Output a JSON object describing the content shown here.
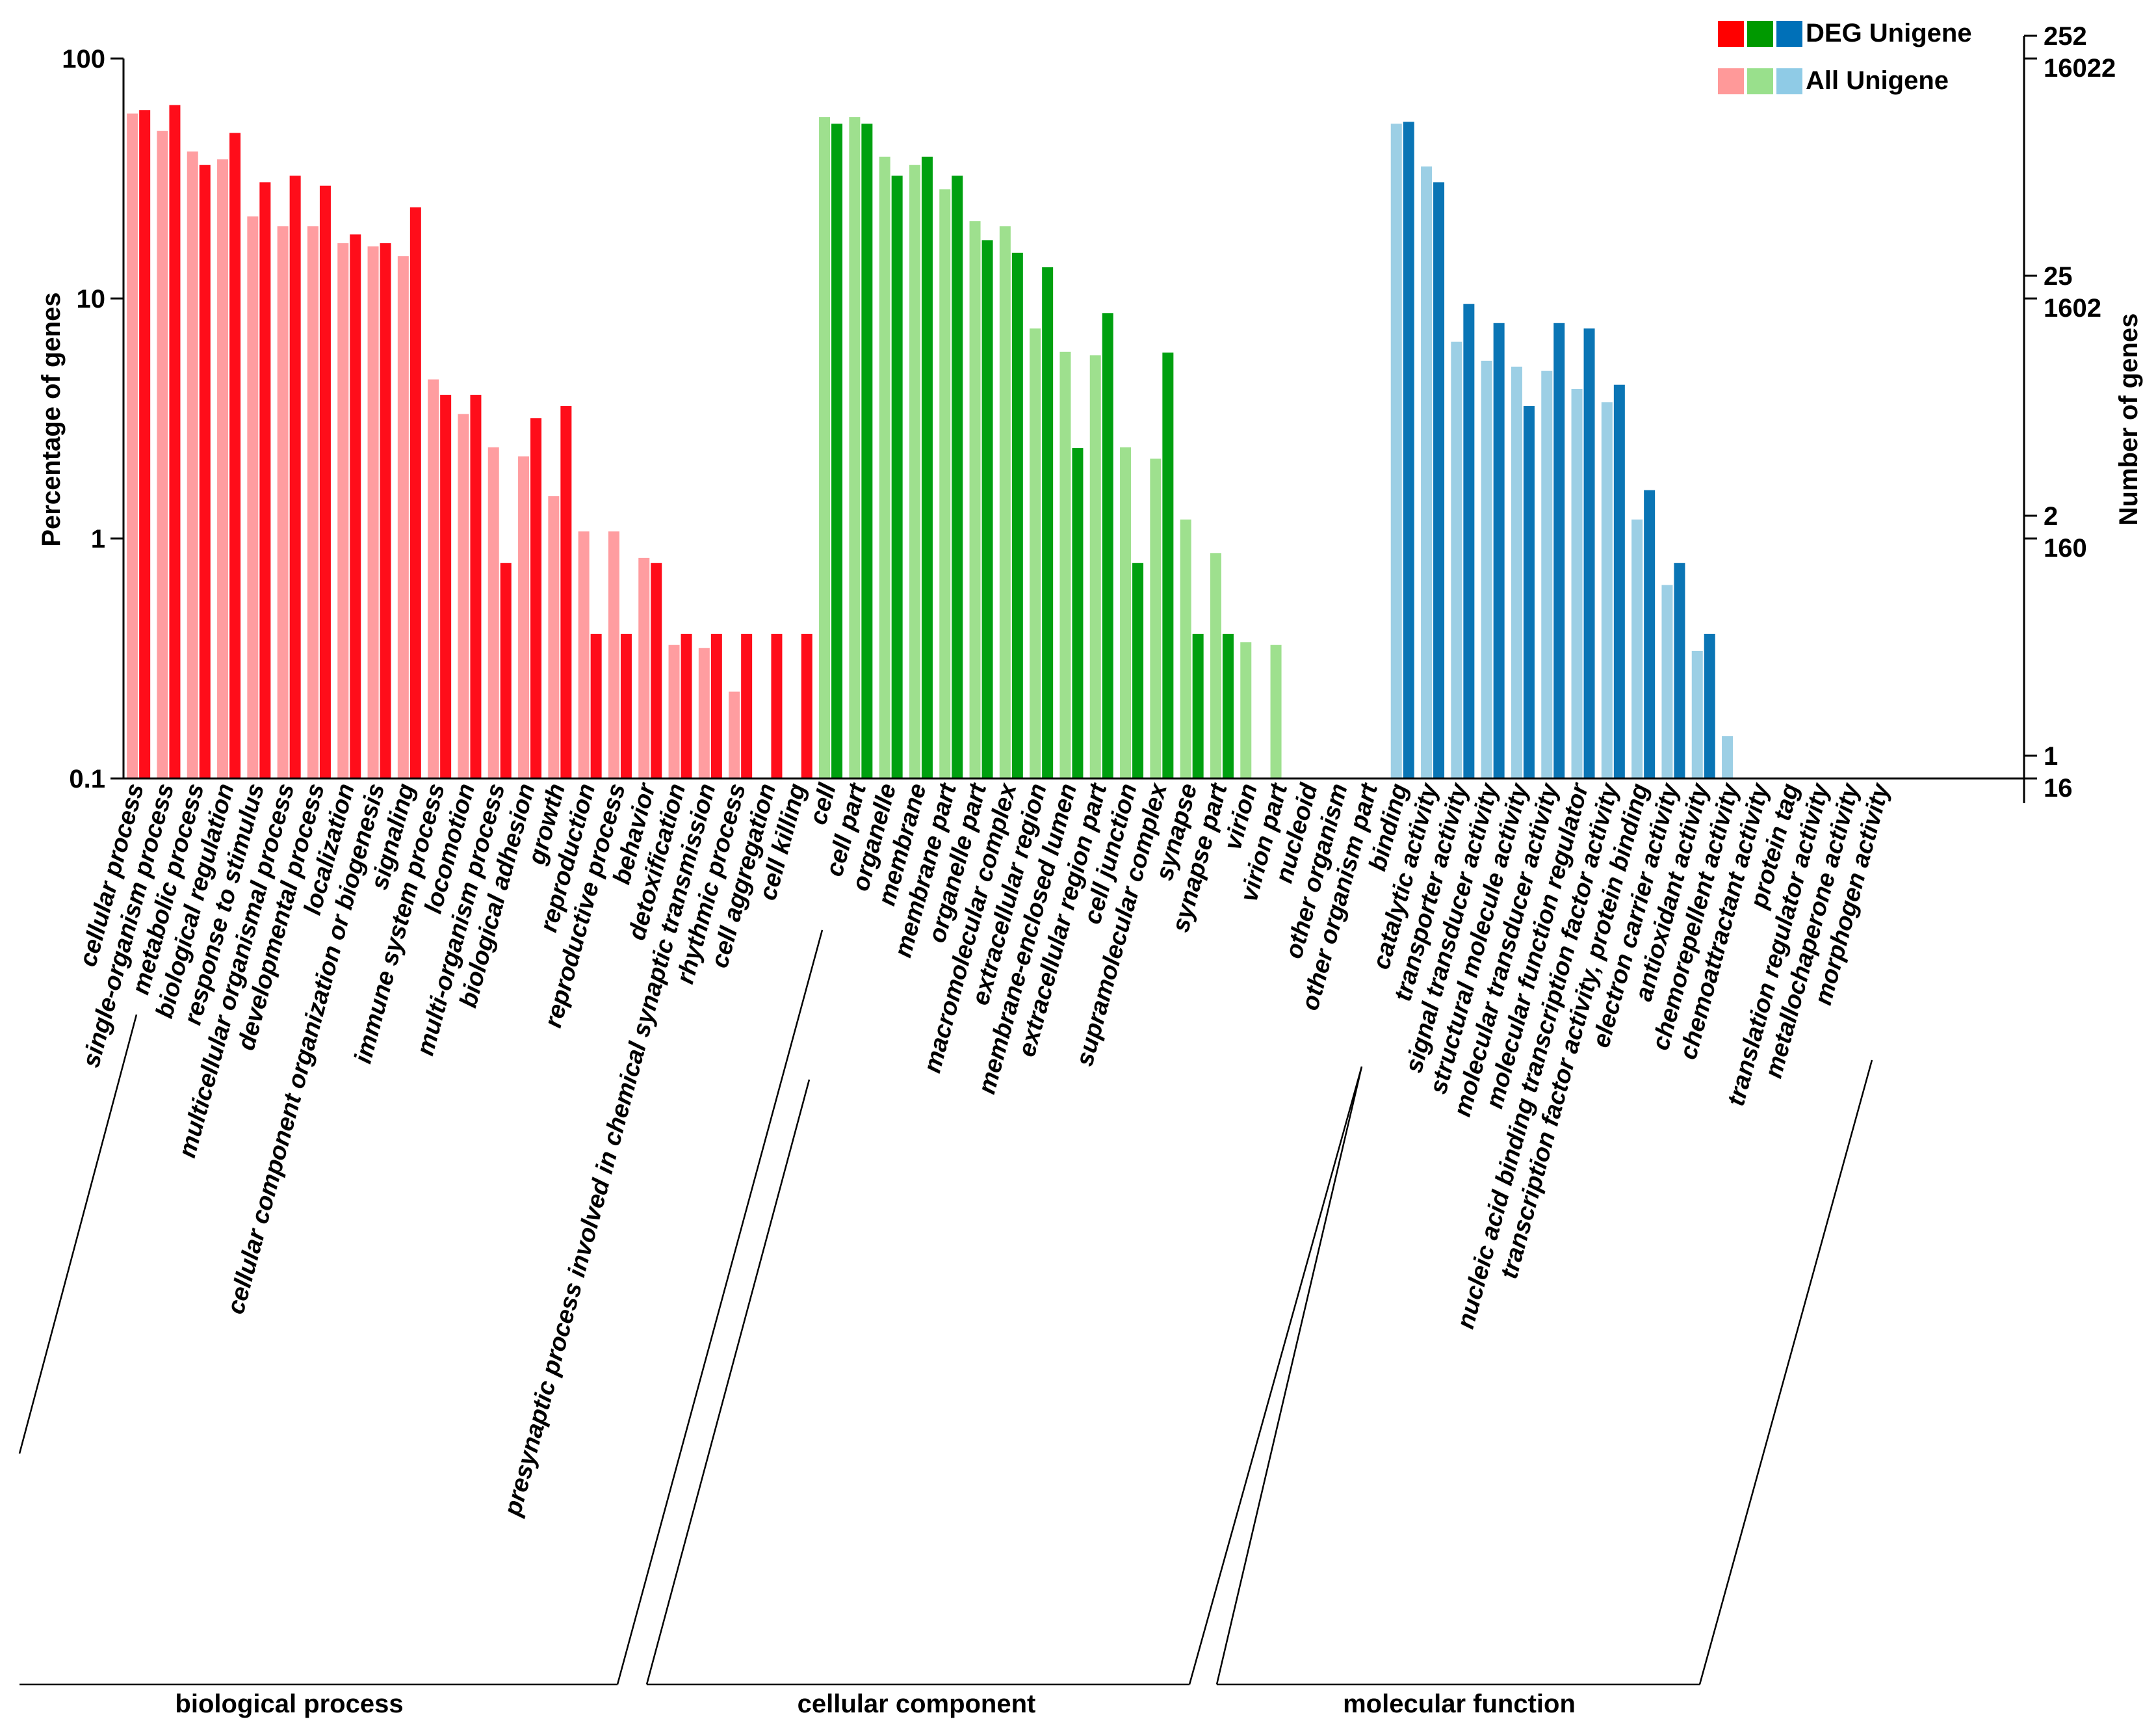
{
  "chart_data": {
    "type": "bar",
    "scale": "log",
    "ylabel": "Percentage of genes",
    "y2label": "Number of genes",
    "ylim": [
      0.1,
      100
    ],
    "y_ticks": [
      "100",
      "10",
      "1",
      "0.1"
    ],
    "y2_ticks": [
      {
        "deg": "252",
        "all": "16022"
      },
      {
        "deg": "25",
        "all": "1602"
      },
      {
        "deg": "2",
        "all": "160"
      },
      {
        "deg": "1",
        "all": "16"
      }
    ],
    "legend": [
      {
        "label": "DEG Unigene",
        "colors": [
          "#ff0000",
          "#009900",
          "#0070b8"
        ]
      },
      {
        "label": "All Unigene",
        "colors": [
          "#ff9999",
          "#99e08c",
          "#8fcbe6"
        ]
      }
    ],
    "series": [
      {
        "name": "All Unigene"
      },
      {
        "name": "DEG Unigene"
      }
    ],
    "groups": [
      {
        "name": "biological process",
        "dark": "#ff0d1a",
        "light": "#ff9da0",
        "categories": [
          "cellular process",
          "single-organism process",
          "metabolic process",
          "biological regulation",
          "response to stimulus",
          "multicellular organismal process",
          "developmental process",
          "localization",
          "cellular component organization or biogenesis",
          "signaling",
          "immune system process",
          "locomotion",
          "multi-organism process",
          "biological adhesion",
          "growth",
          "reproduction",
          "reproductive process",
          "behavior",
          "detoxification",
          "presynaptic process involved in chemical synaptic transmission",
          "rhythmic process",
          "cell aggregation",
          "cell killing"
        ],
        "all": [
          59,
          50,
          41,
          38,
          22,
          20,
          20,
          17,
          16.5,
          15,
          4.6,
          3.3,
          2.4,
          2.2,
          1.5,
          1.07,
          1.07,
          0.83,
          0.36,
          0.35,
          0.23,
          null,
          null
        ],
        "deg": [
          61,
          64,
          36,
          49,
          30.5,
          32.5,
          29.5,
          18.5,
          17,
          24,
          3.97,
          3.97,
          0.79,
          3.17,
          3.57,
          0.4,
          0.4,
          0.79,
          0.4,
          0.4,
          0.4,
          0.4,
          0.4
        ]
      },
      {
        "name": "cellular component",
        "dark": "#00a010",
        "light": "#9ee08e",
        "categories": [
          "cell",
          "cell part",
          "organelle",
          "membrane",
          "membrane part",
          "organelle part",
          "macromolecular complex",
          "extracellular region",
          "membrane-enclosed lumen",
          "extracellular region part",
          "cell junction",
          "supramolecular complex",
          "synapse",
          "synapse part",
          "virion",
          "virion part",
          "nucleoid",
          "other organism",
          "other organism part"
        ],
        "all": [
          57,
          57,
          39,
          36,
          28.5,
          21,
          20,
          7.5,
          6,
          5.8,
          2.4,
          2.15,
          1.2,
          0.87,
          0.37,
          0.36,
          null,
          null,
          null
        ],
        "deg": [
          53.5,
          53.5,
          32.5,
          39,
          32.5,
          17.5,
          15.5,
          13.5,
          2.38,
          8.7,
          0.79,
          5.95,
          0.4,
          0.4,
          null,
          null,
          null,
          null,
          null
        ]
      },
      {
        "name": "molecular function",
        "dark": "#0a75b5",
        "light": "#9ccfe5",
        "categories": [
          "binding",
          "catalytic activity",
          "transporter activity",
          "signal transducer activity",
          "structural molecule activity",
          "molecular transducer activity",
          "molecular function regulator",
          "nucleic acid binding transcription factor activity",
          "transcription factor activity, protein binding",
          "electron carrier activity",
          "antioxidant activity",
          "chemorepellent activity",
          "chemoattractant activity",
          "protein tag",
          "translation regulator activity",
          "metallochaperone activity",
          "morphogen activity"
        ],
        "all": [
          53.5,
          35.5,
          6.6,
          5.5,
          5.2,
          5,
          4.2,
          3.7,
          1.2,
          0.64,
          0.34,
          0.15,
          null,
          null,
          null,
          null,
          null
        ],
        "deg": [
          54.5,
          30.5,
          9.5,
          7.9,
          3.57,
          7.9,
          7.5,
          4.37,
          1.59,
          0.79,
          0.4,
          null,
          null,
          null,
          null,
          null,
          null
        ]
      }
    ]
  }
}
